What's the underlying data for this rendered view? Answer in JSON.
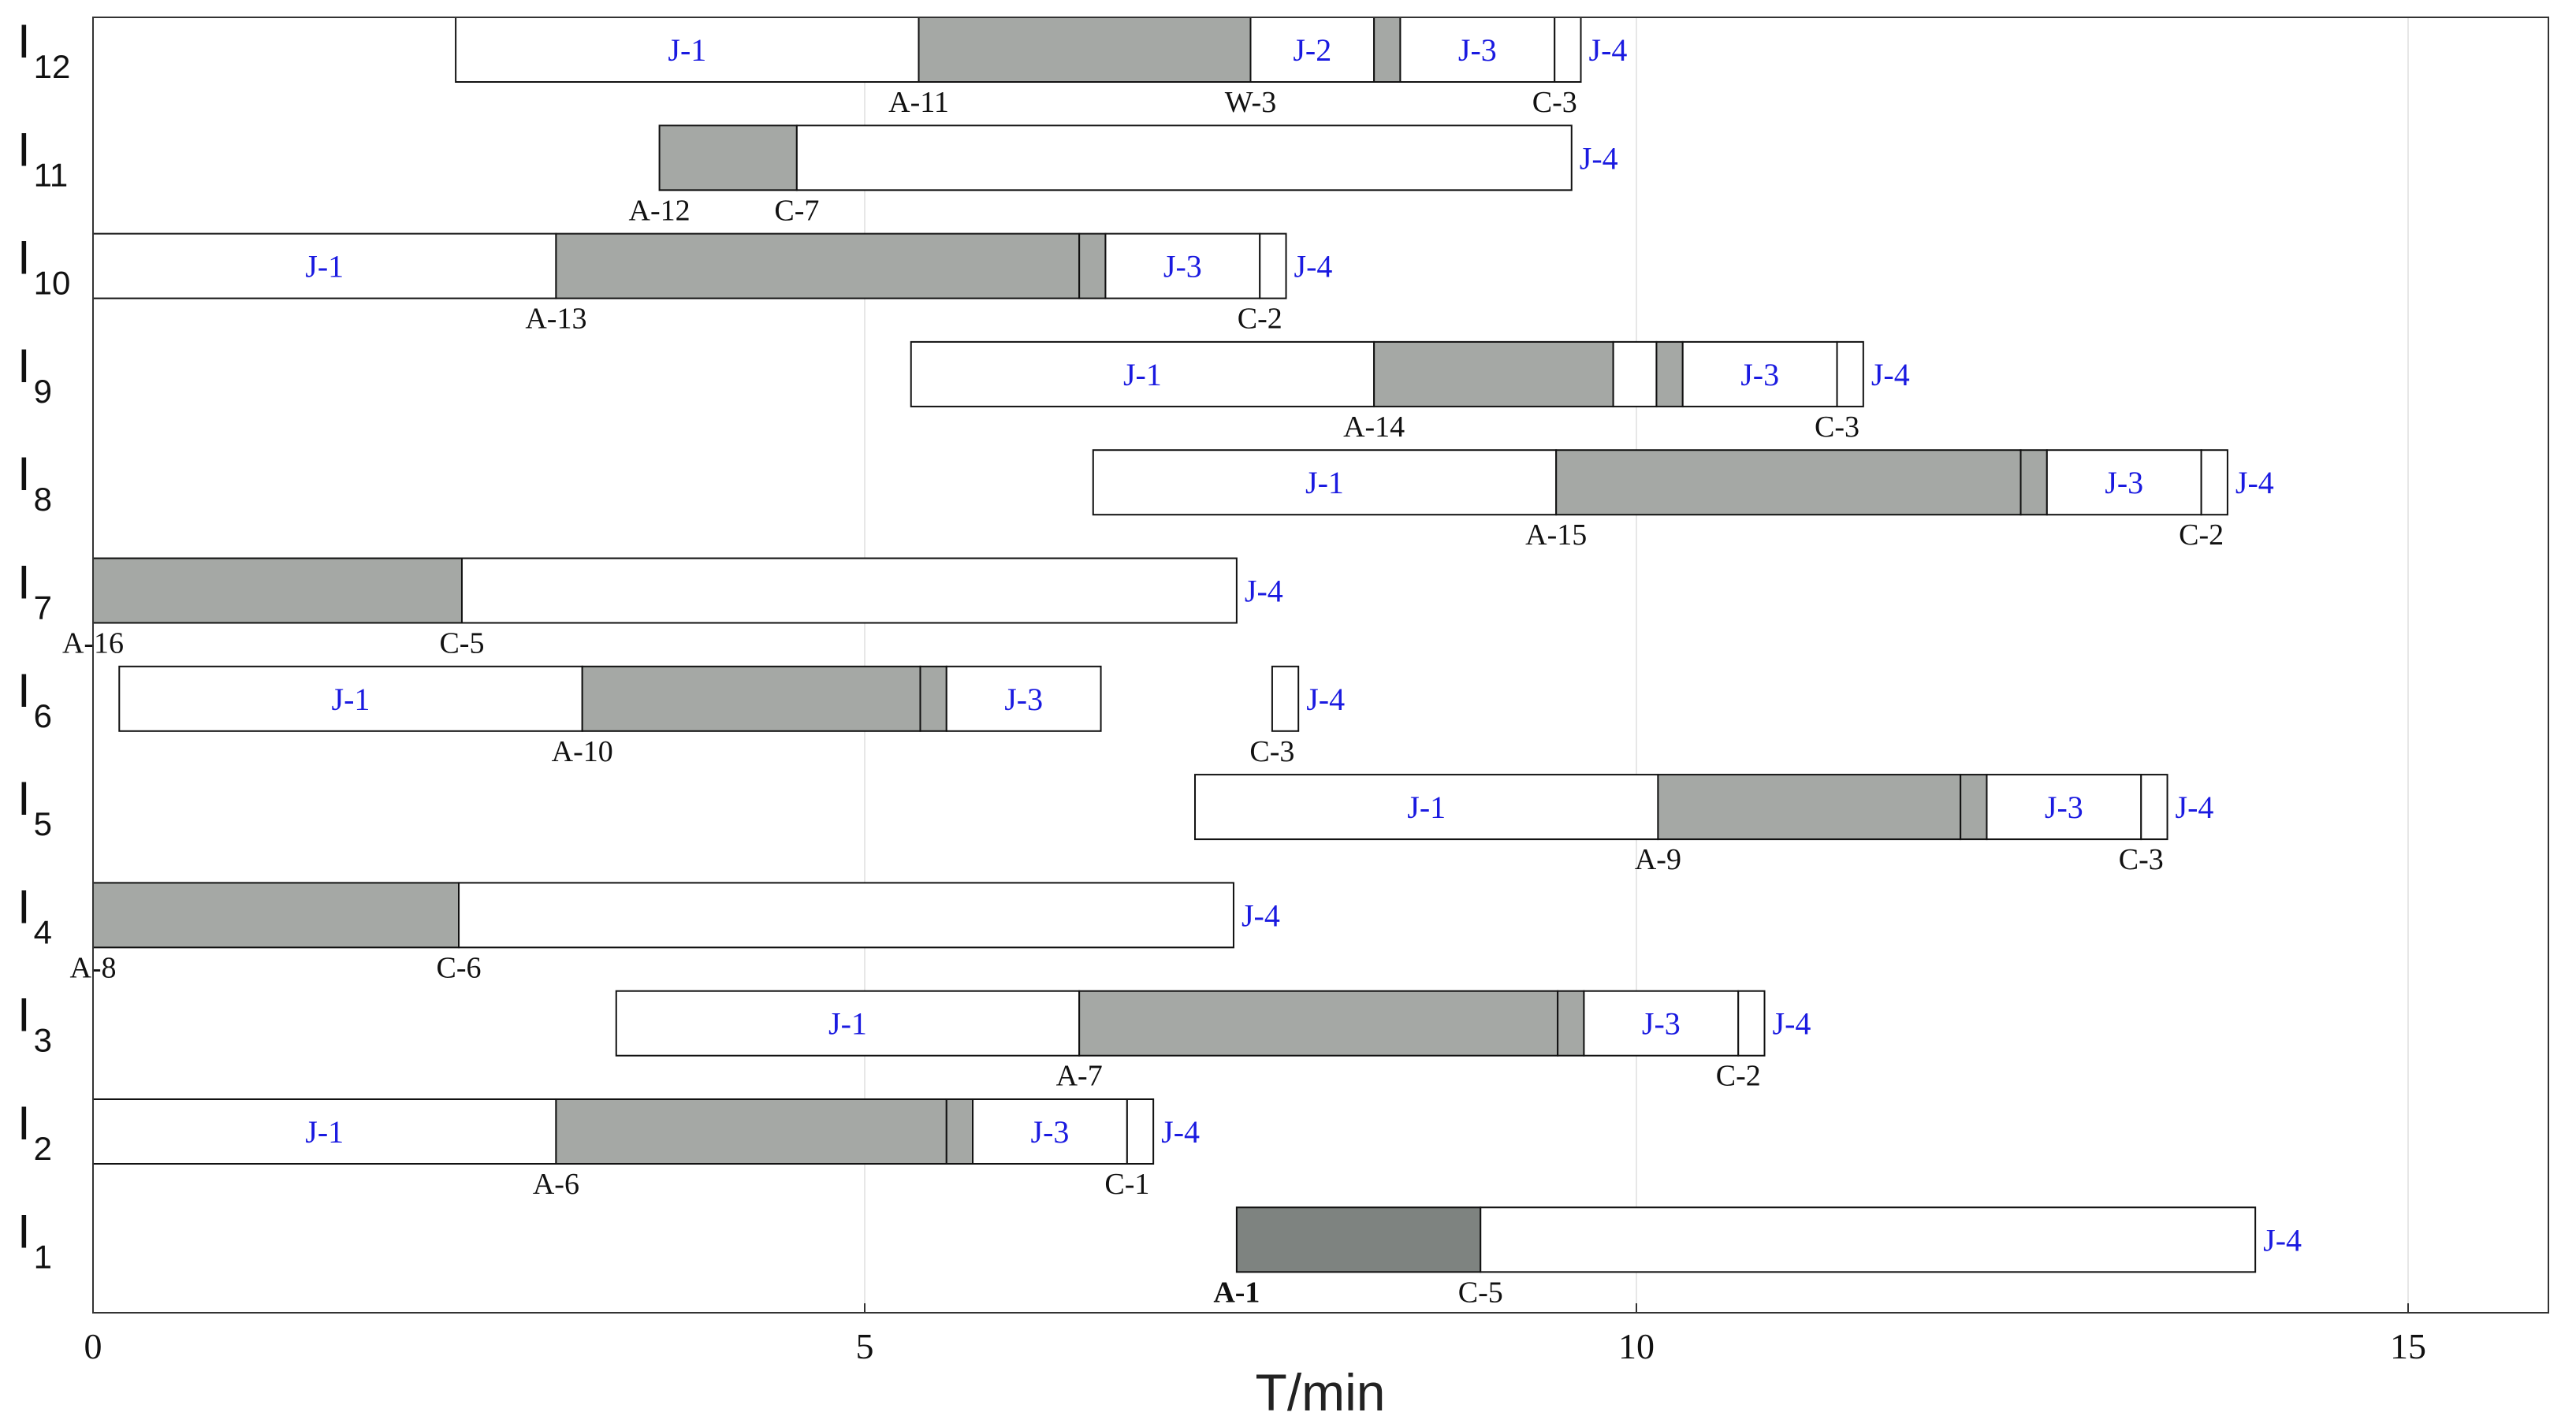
{
  "chart_data": {
    "type": "gantt",
    "xlabel": "T/min",
    "xlim": [
      0,
      16
    ],
    "xticks": [
      0,
      5,
      10,
      15
    ],
    "grid": "vertical",
    "colors": {
      "idle": "#ffffff",
      "process": "#a5a8a5",
      "highlight": "#7e8380",
      "segment_label": "#1a1ae0"
    },
    "rows": [
      {
        "label": "I",
        "sub": "12",
        "segments": [
          {
            "start": 2.35,
            "end": 5.35,
            "fill": "idle",
            "label": "J-1"
          },
          {
            "start": 5.35,
            "end": 7.5,
            "fill": "process",
            "label": ""
          },
          {
            "start": 7.5,
            "end": 8.3,
            "fill": "idle",
            "label": "J-2"
          },
          {
            "start": 8.3,
            "end": 8.47,
            "fill": "process",
            "label": ""
          },
          {
            "start": 8.47,
            "end": 9.47,
            "fill": "idle",
            "label": "J-3"
          },
          {
            "start": 9.47,
            "end": 9.64,
            "fill": "idle",
            "label": ""
          }
        ],
        "end_label": "J-4",
        "events": [
          {
            "x": 5.35,
            "label": "A-11"
          },
          {
            "x": 7.5,
            "label": "W-3"
          },
          {
            "x": 9.47,
            "label": "C-3"
          }
        ]
      },
      {
        "label": "I",
        "sub": "11",
        "segments": [
          {
            "start": 3.67,
            "end": 4.56,
            "fill": "process",
            "label": ""
          },
          {
            "start": 4.56,
            "end": 9.58,
            "fill": "idle",
            "label": ""
          }
        ],
        "end_label": "J-4",
        "events": [
          {
            "x": 3.67,
            "label": "A-12"
          },
          {
            "x": 4.56,
            "label": "C-7"
          }
        ]
      },
      {
        "label": "I",
        "sub": "10",
        "segments": [
          {
            "start": 0,
            "end": 3.0,
            "fill": "idle",
            "label": "J-1"
          },
          {
            "start": 3.0,
            "end": 6.39,
            "fill": "process",
            "label": ""
          },
          {
            "start": 6.39,
            "end": 6.56,
            "fill": "process",
            "label": ""
          },
          {
            "start": 6.56,
            "end": 7.56,
            "fill": "idle",
            "label": "J-3"
          },
          {
            "start": 7.56,
            "end": 7.73,
            "fill": "idle",
            "label": ""
          }
        ],
        "end_label": "J-4",
        "events": [
          {
            "x": 3.0,
            "label": "A-13"
          },
          {
            "x": 7.56,
            "label": "C-2"
          }
        ]
      },
      {
        "label": "I",
        "sub": "9",
        "segments": [
          {
            "start": 5.3,
            "end": 8.3,
            "fill": "idle",
            "label": "J-1"
          },
          {
            "start": 8.3,
            "end": 9.85,
            "fill": "process",
            "label": ""
          },
          {
            "start": 9.85,
            "end": 10.13,
            "fill": "idle",
            "label": ""
          },
          {
            "start": 10.13,
            "end": 10.3,
            "fill": "process",
            "label": ""
          },
          {
            "start": 10.3,
            "end": 11.3,
            "fill": "idle",
            "label": "J-3"
          },
          {
            "start": 11.3,
            "end": 11.47,
            "fill": "idle",
            "label": ""
          }
        ],
        "end_label": "J-4",
        "events": [
          {
            "x": 8.3,
            "label": "A-14"
          },
          {
            "x": 11.3,
            "label": "C-3"
          }
        ]
      },
      {
        "label": "I",
        "sub": "8",
        "segments": [
          {
            "start": 6.48,
            "end": 9.48,
            "fill": "idle",
            "label": "J-1"
          },
          {
            "start": 9.48,
            "end": 12.49,
            "fill": "process",
            "label": ""
          },
          {
            "start": 12.49,
            "end": 12.66,
            "fill": "process",
            "label": ""
          },
          {
            "start": 12.66,
            "end": 13.66,
            "fill": "idle",
            "label": "J-3"
          },
          {
            "start": 13.66,
            "end": 13.83,
            "fill": "idle",
            "label": ""
          }
        ],
        "end_label": "J-4",
        "events": [
          {
            "x": 9.48,
            "label": "A-15"
          },
          {
            "x": 13.66,
            "label": "C-2"
          }
        ]
      },
      {
        "label": "I",
        "sub": "7",
        "segments": [
          {
            "start": 0,
            "end": 2.39,
            "fill": "process",
            "label": ""
          },
          {
            "start": 2.39,
            "end": 7.41,
            "fill": "idle",
            "label": ""
          }
        ],
        "end_label": "J-4",
        "events": [
          {
            "x": 0,
            "label": "A-16"
          },
          {
            "x": 2.39,
            "label": "C-5"
          }
        ]
      },
      {
        "label": "I",
        "sub": "6",
        "segments": [
          {
            "start": 0.17,
            "end": 3.17,
            "fill": "idle",
            "label": "J-1"
          },
          {
            "start": 3.17,
            "end": 5.36,
            "fill": "process",
            "label": ""
          },
          {
            "start": 5.36,
            "end": 5.53,
            "fill": "process",
            "label": ""
          },
          {
            "start": 5.53,
            "end": 6.53,
            "fill": "idle",
            "label": "J-3"
          },
          {
            "start": 7.64,
            "end": 7.81,
            "fill": "idle",
            "label": ""
          }
        ],
        "end_label": "J-4",
        "events": [
          {
            "x": 3.17,
            "label": "A-10"
          },
          {
            "x": 7.64,
            "label": "C-3"
          }
        ]
      },
      {
        "label": "I",
        "sub": "5",
        "segments": [
          {
            "start": 7.14,
            "end": 10.14,
            "fill": "idle",
            "label": "J-1"
          },
          {
            "start": 10.14,
            "end": 12.1,
            "fill": "process",
            "label": ""
          },
          {
            "start": 12.1,
            "end": 12.27,
            "fill": "process",
            "label": ""
          },
          {
            "start": 12.27,
            "end": 13.27,
            "fill": "idle",
            "label": "J-3"
          },
          {
            "start": 13.27,
            "end": 13.44,
            "fill": "idle",
            "label": ""
          }
        ],
        "end_label": "J-4",
        "events": [
          {
            "x": 10.14,
            "label": "A-9"
          },
          {
            "x": 13.27,
            "label": "C-3"
          }
        ]
      },
      {
        "label": "I",
        "sub": "4",
        "segments": [
          {
            "start": 0,
            "end": 2.37,
            "fill": "process",
            "label": ""
          },
          {
            "start": 2.37,
            "end": 7.39,
            "fill": "idle",
            "label": ""
          }
        ],
        "end_label": "J-4",
        "events": [
          {
            "x": 0,
            "label": "A-8"
          },
          {
            "x": 2.37,
            "label": "C-6"
          }
        ]
      },
      {
        "label": "I",
        "sub": "3",
        "segments": [
          {
            "start": 3.39,
            "end": 6.39,
            "fill": "idle",
            "label": "J-1"
          },
          {
            "start": 6.39,
            "end": 9.49,
            "fill": "process",
            "label": ""
          },
          {
            "start": 9.49,
            "end": 9.66,
            "fill": "process",
            "label": ""
          },
          {
            "start": 9.66,
            "end": 10.66,
            "fill": "idle",
            "label": "J-3"
          },
          {
            "start": 10.66,
            "end": 10.83,
            "fill": "idle",
            "label": ""
          }
        ],
        "end_label": "J-4",
        "events": [
          {
            "x": 6.39,
            "label": "A-7"
          },
          {
            "x": 10.66,
            "label": "C-2"
          }
        ]
      },
      {
        "label": "I",
        "sub": "2",
        "segments": [
          {
            "start": 0,
            "end": 3.0,
            "fill": "idle",
            "label": "J-1"
          },
          {
            "start": 3.0,
            "end": 5.53,
            "fill": "process",
            "label": ""
          },
          {
            "start": 5.53,
            "end": 5.7,
            "fill": "process",
            "label": ""
          },
          {
            "start": 5.7,
            "end": 6.7,
            "fill": "idle",
            "label": "J-3"
          },
          {
            "start": 6.7,
            "end": 6.87,
            "fill": "idle",
            "label": ""
          }
        ],
        "end_label": "J-4",
        "events": [
          {
            "x": 3.0,
            "label": "A-6"
          },
          {
            "x": 6.7,
            "label": "C-1"
          }
        ]
      },
      {
        "label": "I",
        "sub": "1",
        "segments": [
          {
            "start": 7.41,
            "end": 8.99,
            "fill": "highlight",
            "label": ""
          },
          {
            "start": 8.99,
            "end": 14.01,
            "fill": "idle",
            "label": ""
          }
        ],
        "end_label": "J-4",
        "events": [
          {
            "x": 7.41,
            "label": "A-1",
            "bold": true
          },
          {
            "x": 8.99,
            "label": "C-5"
          }
        ]
      }
    ]
  }
}
